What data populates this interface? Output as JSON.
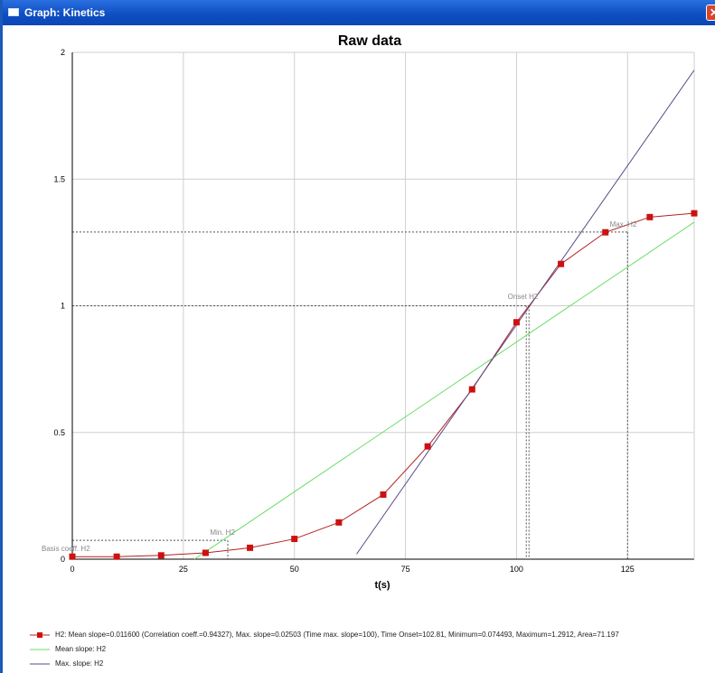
{
  "window": {
    "title": "Graph: Kinetics",
    "close_label": "✕"
  },
  "chart_data": {
    "type": "line",
    "title": "Raw data",
    "xlabel": "t(s)",
    "ylabel": "",
    "xlim": [
      0,
      140
    ],
    "ylim": [
      0,
      2
    ],
    "x_ticks": [
      "0",
      "25",
      "50",
      "75",
      "100",
      "125"
    ],
    "x_tick_values": [
      0,
      25,
      50,
      75,
      100,
      125
    ],
    "y_ticks": [
      "0",
      "0.5",
      "1",
      "1.5",
      "2"
    ],
    "y_tick_values": [
      0,
      0.5,
      1,
      1.5,
      2
    ],
    "grid": true,
    "legend_position": "bottom",
    "series": [
      {
        "name": "H2",
        "color": "#b22222",
        "x": [
          0,
          10,
          20,
          30,
          40,
          50,
          60,
          70,
          80,
          90,
          100,
          110,
          120,
          130,
          140
        ],
        "y": [
          0.01,
          0.01,
          0.015,
          0.025,
          0.045,
          0.08,
          0.145,
          0.255,
          0.445,
          0.67,
          0.935,
          1.165,
          1.29,
          1.35,
          1.365
        ]
      },
      {
        "name": "Mean slope: H2",
        "color": "#66dd66",
        "x": [
          27.5,
          140
        ],
        "y": [
          0.0,
          1.33
        ]
      },
      {
        "name": "Max. slope: H2",
        "color": "#5a4a8a",
        "x": [
          64,
          140
        ],
        "y": [
          0.02,
          1.93
        ]
      }
    ],
    "annotations": [
      {
        "text": "Basis coeff. H2",
        "x": 0,
        "y": 0.025
      },
      {
        "text": "Min. H2",
        "x": 31,
        "y": 0.09
      },
      {
        "text": "Onset H2",
        "x": 98,
        "y": 1.02
      },
      {
        "text": "Max. H2",
        "x": 121,
        "y": 1.305
      }
    ],
    "reference_lines": {
      "basis_y": 0.074493,
      "max_y": 1.2912,
      "onset_x": 102.81,
      "max_x": 125,
      "onset_y": 1.0,
      "min_x": 35
    },
    "legend_entries": [
      "H2: Mean slope=0.011600 (Correlation coeff.=0.94327), Max. slope=0.02503 (Time max. slope=100), Time Onset=102.81, Minimum=0.074493, Maximum=1.2912, Area=71.197",
      "Mean slope: H2",
      "Max. slope: H2"
    ]
  }
}
